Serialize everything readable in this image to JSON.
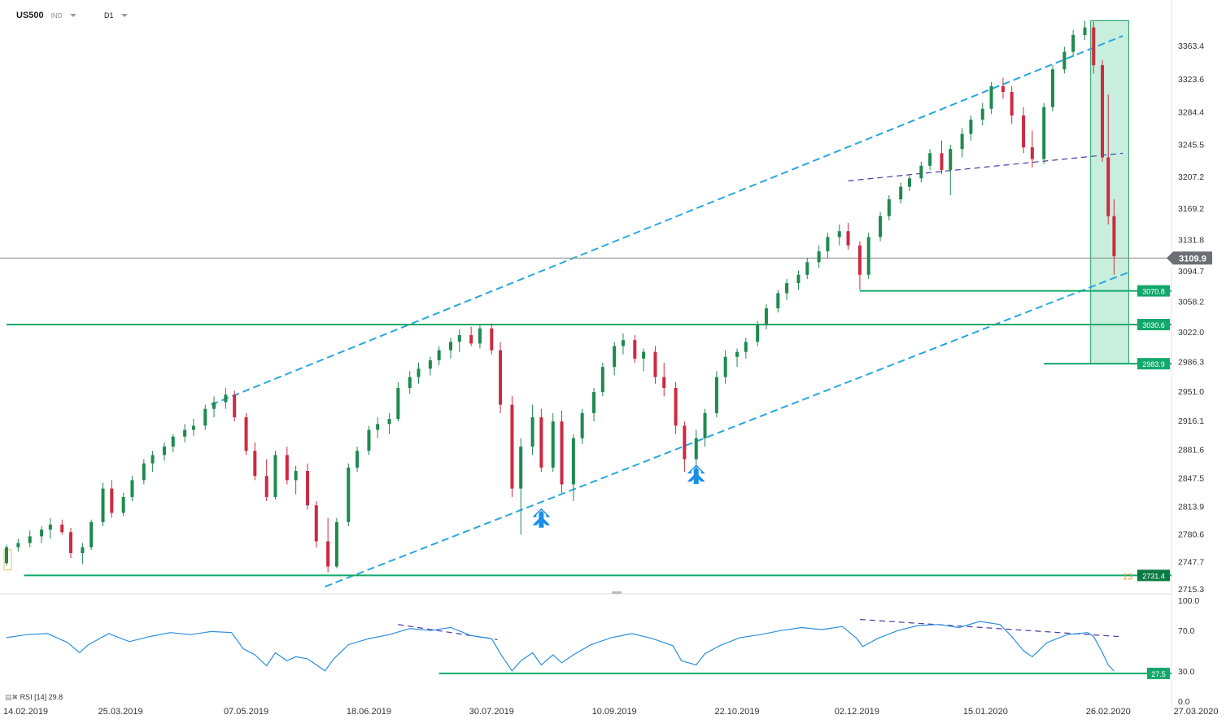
{
  "header": {
    "symbol": "US500",
    "type": "IND",
    "timeframe": "D1"
  },
  "rsi_header": {
    "label": "RSI [14]",
    "value": "29.8"
  },
  "colors": {
    "up": "#1e8a4f",
    "down": "#cc2a41",
    "channel": "#29a7df",
    "wedge": "#4a3aa8",
    "level": "#13a86b",
    "rsi_line": "#2b8fe0",
    "highlight_fill": "#b6ead2",
    "highlight_border": "#1fa05e",
    "price_tag": "#6b6e72",
    "arrow": "#1a8fe8"
  },
  "icons": [
    "header-caret-icon",
    "buy-arrow-icon",
    "rsi-indicator-icon"
  ],
  "chart_data": [
    {
      "type": "candlestick",
      "title": "US500",
      "ylim": [
        2715.3,
        3395.0
      ],
      "y_ticks": [
        "3363.4",
        "3323.6",
        "3284.4",
        "3245.5",
        "3207.2",
        "3169.2",
        "3131.8",
        "3094.7",
        "3058.2",
        "3022.0",
        "2986.3",
        "2951.0",
        "2916.1",
        "2881.6",
        "2847.5",
        "2813.9",
        "2780.6",
        "2747.7",
        "2715.3"
      ],
      "x_ticks": [
        "14.02.2019",
        "25.03.2019",
        "07.05.2019",
        "18.06.2019",
        "30.07.2019",
        "10.09.2019",
        "22.10.2019",
        "02.12.2019",
        "15.01.2020",
        "26.02.2020",
        "27.03.2020"
      ],
      "last_price": "3109.9",
      "price_line": 3109.9,
      "levels": [
        {
          "label": "3070.8",
          "value": 3070.8,
          "from_date": "2019-12-03"
        },
        {
          "label": "3030.6",
          "value": 3030.6,
          "from_date": "2019-02-14"
        },
        {
          "label": "2983.9",
          "value": 2983.9,
          "from_date": "2020-02-04"
        },
        {
          "label": "2731.4",
          "value": 2731.4,
          "from_date": "2019-02-20",
          "badge": "13"
        }
      ],
      "trendlines": [
        {
          "kind": "channel-upper",
          "from": [
            "2019-04-25",
            2935
          ],
          "to": [
            "2020-03-02",
            3375
          ]
        },
        {
          "kind": "channel-lower",
          "from": [
            "2019-06-03",
            2718
          ],
          "to": [
            "2020-03-04",
            3093
          ]
        },
        {
          "kind": "wedge",
          "from": [
            "2019-11-29",
            3202
          ],
          "to": [
            "2020-03-02",
            3235
          ]
        }
      ],
      "highlight_zone": {
        "from_date": "2020-02-20",
        "to_date": "2020-03-04",
        "low": 2983.9,
        "high": 3393
      },
      "arrows": [
        {
          "date": "2019-08-16",
          "value": 2800
        },
        {
          "date": "2019-10-08",
          "value": 2852
        }
      ],
      "candles": [
        [
          "2019-02-14",
          2746,
          2768,
          2743,
          2765
        ],
        [
          "2019-02-18",
          2765,
          2775,
          2760,
          2770
        ],
        [
          "2019-02-22",
          2770,
          2785,
          2765,
          2778
        ],
        [
          "2019-02-26",
          2778,
          2790,
          2770,
          2786
        ],
        [
          "2019-03-01",
          2786,
          2800,
          2775,
          2792
        ],
        [
          "2019-03-05",
          2792,
          2798,
          2780,
          2783
        ],
        [
          "2019-03-08",
          2783,
          2788,
          2752,
          2758
        ],
        [
          "2019-03-12",
          2758,
          2770,
          2745,
          2765
        ],
        [
          "2019-03-15",
          2765,
          2798,
          2762,
          2795
        ],
        [
          "2019-03-19",
          2795,
          2842,
          2790,
          2835
        ],
        [
          "2019-03-22",
          2835,
          2845,
          2800,
          2806
        ],
        [
          "2019-03-26",
          2806,
          2830,
          2802,
          2825
        ],
        [
          "2019-03-29",
          2825,
          2850,
          2820,
          2845
        ],
        [
          "2019-04-02",
          2845,
          2870,
          2840,
          2865
        ],
        [
          "2019-04-05",
          2865,
          2880,
          2855,
          2875
        ],
        [
          "2019-04-09",
          2875,
          2890,
          2868,
          2885
        ],
        [
          "2019-04-12",
          2885,
          2900,
          2878,
          2897
        ],
        [
          "2019-04-16",
          2897,
          2912,
          2890,
          2905
        ],
        [
          "2019-04-19",
          2905,
          2918,
          2898,
          2910
        ],
        [
          "2019-04-23",
          2910,
          2935,
          2905,
          2930
        ],
        [
          "2019-04-26",
          2930,
          2945,
          2920,
          2938
        ],
        [
          "2019-04-30",
          2938,
          2955,
          2930,
          2947
        ],
        [
          "2019-05-03",
          2947,
          2952,
          2915,
          2920
        ],
        [
          "2019-05-07",
          2920,
          2925,
          2875,
          2880
        ],
        [
          "2019-05-10",
          2880,
          2890,
          2845,
          2850
        ],
        [
          "2019-05-14",
          2850,
          2870,
          2820,
          2825
        ],
        [
          "2019-05-17",
          2825,
          2880,
          2822,
          2875
        ],
        [
          "2019-05-21",
          2875,
          2885,
          2840,
          2845
        ],
        [
          "2019-05-24",
          2845,
          2862,
          2828,
          2856
        ],
        [
          "2019-05-28",
          2856,
          2865,
          2810,
          2815
        ],
        [
          "2019-05-31",
          2815,
          2820,
          2765,
          2772
        ],
        [
          "2019-06-04",
          2772,
          2800,
          2735,
          2742
        ],
        [
          "2019-06-07",
          2742,
          2800,
          2740,
          2795
        ],
        [
          "2019-06-11",
          2795,
          2865,
          2790,
          2860
        ],
        [
          "2019-06-14",
          2860,
          2885,
          2855,
          2880
        ],
        [
          "2019-06-18",
          2880,
          2910,
          2875,
          2905
        ],
        [
          "2019-06-21",
          2905,
          2920,
          2895,
          2912
        ],
        [
          "2019-06-25",
          2912,
          2925,
          2900,
          2918
        ],
        [
          "2019-06-28",
          2918,
          2962,
          2915,
          2955
        ],
        [
          "2019-07-02",
          2955,
          2975,
          2948,
          2968
        ],
        [
          "2019-07-05",
          2968,
          2985,
          2960,
          2978
        ],
        [
          "2019-07-09",
          2978,
          2992,
          2970,
          2988
        ],
        [
          "2019-07-12",
          2988,
          3005,
          2982,
          3000
        ],
        [
          "2019-07-16",
          3000,
          3015,
          2990,
          3010
        ],
        [
          "2019-07-19",
          3010,
          3025,
          2998,
          3018
        ],
        [
          "2019-07-23",
          3018,
          3028,
          3005,
          3008
        ],
        [
          "2019-07-26",
          3008,
          3030,
          3002,
          3026
        ],
        [
          "2019-07-30",
          3026,
          3032,
          2995,
          3000
        ],
        [
          "2019-08-02",
          3000,
          3010,
          2925,
          2935
        ],
        [
          "2019-08-06",
          2935,
          2945,
          2825,
          2835
        ],
        [
          "2019-08-09",
          2835,
          2895,
          2780,
          2885
        ],
        [
          "2019-08-13",
          2885,
          2935,
          2875,
          2920
        ],
        [
          "2019-08-16",
          2920,
          2930,
          2855,
          2860
        ],
        [
          "2019-08-20",
          2860,
          2925,
          2855,
          2915
        ],
        [
          "2019-08-23",
          2915,
          2928,
          2830,
          2840
        ],
        [
          "2019-08-27",
          2840,
          2900,
          2820,
          2895
        ],
        [
          "2019-08-30",
          2895,
          2930,
          2888,
          2925
        ],
        [
          "2019-09-03",
          2925,
          2955,
          2915,
          2950
        ],
        [
          "2019-09-06",
          2950,
          2985,
          2945,
          2980
        ],
        [
          "2019-09-10",
          2980,
          3010,
          2970,
          3005
        ],
        [
          "2019-09-13",
          3005,
          3020,
          2995,
          3012
        ],
        [
          "2019-09-17",
          3012,
          3018,
          2985,
          2990
        ],
        [
          "2019-09-20",
          2990,
          3002,
          2975,
          2998
        ],
        [
          "2019-09-24",
          2998,
          3005,
          2960,
          2968
        ],
        [
          "2019-09-27",
          2968,
          2985,
          2945,
          2955
        ],
        [
          "2019-10-01",
          2955,
          2962,
          2900,
          2910
        ],
        [
          "2019-10-04",
          2910,
          2915,
          2855,
          2870
        ],
        [
          "2019-10-08",
          2870,
          2905,
          2860,
          2895
        ],
        [
          "2019-10-11",
          2895,
          2930,
          2885,
          2925
        ],
        [
          "2019-10-15",
          2925,
          2975,
          2920,
          2968
        ],
        [
          "2019-10-18",
          2968,
          3000,
          2960,
          2992
        ],
        [
          "2019-10-22",
          2992,
          3002,
          2980,
          2998
        ],
        [
          "2019-10-25",
          2998,
          3015,
          2990,
          3010
        ],
        [
          "2019-10-29",
          3010,
          3035,
          3005,
          3030
        ],
        [
          "2019-11-01",
          3030,
          3055,
          3025,
          3050
        ],
        [
          "2019-11-05",
          3050,
          3072,
          3045,
          3068
        ],
        [
          "2019-11-08",
          3068,
          3085,
          3060,
          3080
        ],
        [
          "2019-11-12",
          3080,
          3095,
          3072,
          3090
        ],
        [
          "2019-11-15",
          3090,
          3110,
          3085,
          3105
        ],
        [
          "2019-11-19",
          3105,
          3125,
          3098,
          3118
        ],
        [
          "2019-11-22",
          3118,
          3140,
          3110,
          3135
        ],
        [
          "2019-11-26",
          3135,
          3150,
          3125,
          3142
        ],
        [
          "2019-11-29",
          3142,
          3152,
          3120,
          3125
        ],
        [
          "2019-12-03",
          3125,
          3130,
          3072,
          3090
        ],
        [
          "2019-12-06",
          3090,
          3140,
          3085,
          3135
        ],
        [
          "2019-12-10",
          3135,
          3165,
          3130,
          3160
        ],
        [
          "2019-12-13",
          3160,
          3185,
          3155,
          3180
        ],
        [
          "2019-12-17",
          3180,
          3200,
          3175,
          3195
        ],
        [
          "2019-12-20",
          3195,
          3210,
          3190,
          3205
        ],
        [
          "2019-12-24",
          3205,
          3225,
          3200,
          3220
        ],
        [
          "2019-12-27",
          3220,
          3240,
          3215,
          3235
        ],
        [
          "2019-12-31",
          3235,
          3250,
          3210,
          3215
        ],
        [
          "2020-01-03",
          3215,
          3245,
          3185,
          3240
        ],
        [
          "2020-01-07",
          3240,
          3265,
          3230,
          3258
        ],
        [
          "2020-01-10",
          3258,
          3280,
          3250,
          3275
        ],
        [
          "2020-01-14",
          3275,
          3295,
          3268,
          3288
        ],
        [
          "2020-01-17",
          3288,
          3320,
          3282,
          3315
        ],
        [
          "2020-01-21",
          3315,
          3325,
          3300,
          3308
        ],
        [
          "2020-01-24",
          3308,
          3315,
          3270,
          3280
        ],
        [
          "2020-01-28",
          3280,
          3290,
          3235,
          3242
        ],
        [
          "2020-01-31",
          3242,
          3262,
          3218,
          3228
        ],
        [
          "2020-02-04",
          3228,
          3295,
          3222,
          3290
        ],
        [
          "2020-02-07",
          3290,
          3340,
          3285,
          3335
        ],
        [
          "2020-02-11",
          3335,
          3362,
          3330,
          3356
        ],
        [
          "2020-02-14",
          3356,
          3382,
          3350,
          3376
        ],
        [
          "2020-02-18",
          3376,
          3393,
          3370,
          3385
        ],
        [
          "2020-02-21",
          3385,
          3392,
          3330,
          3340
        ],
        [
          "2020-02-24",
          3340,
          3346,
          3225,
          3230
        ],
        [
          "2020-02-26",
          3230,
          3305,
          3150,
          3160
        ],
        [
          "2020-02-28",
          3160,
          3180,
          3090,
          3112
        ]
      ]
    },
    {
      "type": "line",
      "title": "RSI [14] 29.8",
      "ylim": [
        0,
        100
      ],
      "y_ticks": [
        "100.0",
        "70.0",
        "30.0",
        "0.0"
      ],
      "levels": [
        {
          "label": "27.5",
          "value": 27.5,
          "from_date": "2019-07-12"
        }
      ],
      "trendlines": [
        {
          "kind": "divergence",
          "from": [
            "2019-06-28",
            76
          ],
          "to": [
            "2019-08-01",
            61
          ]
        },
        {
          "kind": "divergence",
          "from": [
            "2019-12-03",
            81
          ],
          "to": [
            "2020-03-01",
            64
          ]
        }
      ],
      "values": [
        [
          "2019-02-14",
          63
        ],
        [
          "2019-02-21",
          66
        ],
        [
          "2019-02-28",
          67
        ],
        [
          "2019-03-07",
          58
        ],
        [
          "2019-03-11",
          48
        ],
        [
          "2019-03-14",
          56
        ],
        [
          "2019-03-21",
          67
        ],
        [
          "2019-03-28",
          59
        ],
        [
          "2019-04-04",
          64
        ],
        [
          "2019-04-11",
          68
        ],
        [
          "2019-04-18",
          66
        ],
        [
          "2019-04-25",
          69
        ],
        [
          "2019-05-02",
          68
        ],
        [
          "2019-05-06",
          52
        ],
        [
          "2019-05-10",
          46
        ],
        [
          "2019-05-14",
          35
        ],
        [
          "2019-05-17",
          48
        ],
        [
          "2019-05-21",
          40
        ],
        [
          "2019-05-24",
          44
        ],
        [
          "2019-05-28",
          42
        ],
        [
          "2019-06-03",
          30
        ],
        [
          "2019-06-06",
          42
        ],
        [
          "2019-06-11",
          56
        ],
        [
          "2019-06-18",
          62
        ],
        [
          "2019-06-25",
          66
        ],
        [
          "2019-07-02",
          72
        ],
        [
          "2019-07-09",
          70
        ],
        [
          "2019-07-16",
          73
        ],
        [
          "2019-07-23",
          65
        ],
        [
          "2019-07-30",
          62
        ],
        [
          "2019-08-02",
          47
        ],
        [
          "2019-08-06",
          30
        ],
        [
          "2019-08-09",
          40
        ],
        [
          "2019-08-13",
          48
        ],
        [
          "2019-08-16",
          36
        ],
        [
          "2019-08-20",
          46
        ],
        [
          "2019-08-23",
          38
        ],
        [
          "2019-08-27",
          46
        ],
        [
          "2019-09-02",
          56
        ],
        [
          "2019-09-09",
          63
        ],
        [
          "2019-09-16",
          67
        ],
        [
          "2019-09-23",
          62
        ],
        [
          "2019-09-30",
          55
        ],
        [
          "2019-10-03",
          40
        ],
        [
          "2019-10-08",
          36
        ],
        [
          "2019-10-11",
          47
        ],
        [
          "2019-10-16",
          55
        ],
        [
          "2019-10-23",
          63
        ],
        [
          "2019-10-30",
          66
        ],
        [
          "2019-11-06",
          70
        ],
        [
          "2019-11-13",
          73
        ],
        [
          "2019-11-20",
          71
        ],
        [
          "2019-11-27",
          74
        ],
        [
          "2019-12-02",
          62
        ],
        [
          "2019-12-04",
          54
        ],
        [
          "2019-12-09",
          62
        ],
        [
          "2019-12-16",
          70
        ],
        [
          "2019-12-23",
          75
        ],
        [
          "2019-12-30",
          76
        ],
        [
          "2020-01-06",
          73
        ],
        [
          "2020-01-13",
          79
        ],
        [
          "2020-01-20",
          76
        ],
        [
          "2020-01-24",
          64
        ],
        [
          "2020-01-28",
          50
        ],
        [
          "2020-01-31",
          44
        ],
        [
          "2020-02-05",
          58
        ],
        [
          "2020-02-12",
          66
        ],
        [
          "2020-02-19",
          68
        ],
        [
          "2020-02-21",
          64
        ],
        [
          "2020-02-24",
          48
        ],
        [
          "2020-02-26",
          36
        ],
        [
          "2020-02-28",
          29.8
        ]
      ]
    }
  ]
}
